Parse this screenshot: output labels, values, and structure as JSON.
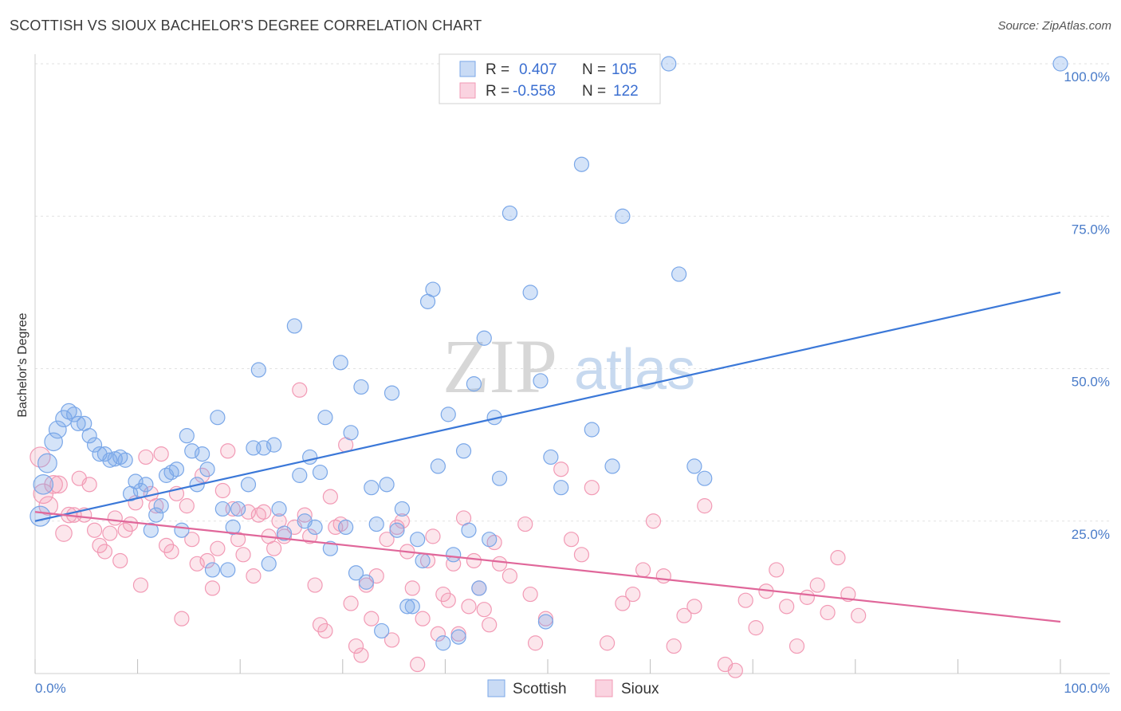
{
  "title": "SCOTTISH VS SIOUX BACHELOR'S DEGREE CORRELATION CHART",
  "source": "Source: ZipAtlas.com",
  "watermark": {
    "zip": "ZIP",
    "atlas": "atlas"
  },
  "legend_top": {
    "rows": [
      {
        "r_label": "R =",
        "r_value": "0.407",
        "n_label": "N =",
        "n_value": "105",
        "color": "#7aa7e8"
      },
      {
        "r_label": "R =",
        "r_value": "-0.558",
        "n_label": "N =",
        "n_value": "122",
        "color": "#f29ab5"
      }
    ]
  },
  "chart_data": {
    "type": "scatter",
    "title": "SCOTTISH VS SIOUX BACHELOR'S DEGREE CORRELATION CHART",
    "xlabel": "",
    "ylabel": "Bachelor's Degree",
    "xlim": [
      0,
      100
    ],
    "ylim": [
      0,
      100
    ],
    "x_tick_labels": [
      "0.0%",
      "100.0%"
    ],
    "y_tick_labels": [
      "25.0%",
      "50.0%",
      "75.0%",
      "100.0%"
    ],
    "y_ticks": [
      25,
      50,
      75,
      100
    ],
    "grid": true,
    "legend_position": "bottom-center",
    "series": [
      {
        "name": "Scottish",
        "color": "#7aa7e8",
        "line_color": "#3b78d8",
        "r": 0.407,
        "n": 105,
        "trend": {
          "x0": 0,
          "y0": 25.0,
          "x1": 100,
          "y1": 62.5
        },
        "points": [
          [
            0.5,
            25.8
          ],
          [
            0.8,
            31.0
          ],
          [
            1.2,
            34.5
          ],
          [
            1.8,
            38.0
          ],
          [
            2.2,
            40.0
          ],
          [
            2.8,
            41.8
          ],
          [
            3.3,
            43.0
          ],
          [
            3.8,
            42.5
          ],
          [
            4.2,
            41.0
          ],
          [
            4.8,
            41.0
          ],
          [
            5.3,
            39.0
          ],
          [
            5.8,
            37.5
          ],
          [
            6.3,
            36.0
          ],
          [
            6.8,
            36.0
          ],
          [
            7.3,
            35.0
          ],
          [
            7.8,
            35.2
          ],
          [
            8.3,
            35.5
          ],
          [
            8.8,
            35.0
          ],
          [
            9.3,
            29.5
          ],
          [
            9.8,
            31.5
          ],
          [
            10.3,
            30.0
          ],
          [
            10.8,
            31.0
          ],
          [
            11.3,
            23.5
          ],
          [
            11.8,
            26.0
          ],
          [
            12.3,
            27.5
          ],
          [
            12.8,
            32.5
          ],
          [
            13.3,
            33.0
          ],
          [
            13.8,
            33.5
          ],
          [
            14.3,
            23.5
          ],
          [
            14.8,
            39.0
          ],
          [
            15.3,
            36.5
          ],
          [
            15.8,
            31.0
          ],
          [
            16.3,
            36.0
          ],
          [
            16.8,
            33.5
          ],
          [
            17.3,
            17.0
          ],
          [
            17.8,
            42.0
          ],
          [
            18.3,
            27.0
          ],
          [
            18.8,
            17.0
          ],
          [
            19.3,
            24.0
          ],
          [
            19.8,
            27.0
          ],
          [
            20.8,
            31.0
          ],
          [
            21.3,
            37.0
          ],
          [
            21.8,
            49.8
          ],
          [
            22.3,
            37.0
          ],
          [
            22.8,
            18.0
          ],
          [
            23.3,
            37.5
          ],
          [
            23.8,
            27.0
          ],
          [
            24.3,
            23.0
          ],
          [
            25.3,
            57.0
          ],
          [
            25.8,
            32.5
          ],
          [
            26.3,
            25.0
          ],
          [
            26.8,
            35.5
          ],
          [
            27.3,
            24.0
          ],
          [
            27.8,
            33.0
          ],
          [
            28.3,
            42.0
          ],
          [
            28.8,
            20.5
          ],
          [
            29.8,
            51.0
          ],
          [
            30.3,
            24.0
          ],
          [
            30.8,
            39.5
          ],
          [
            31.3,
            16.5
          ],
          [
            31.8,
            47.0
          ],
          [
            32.3,
            15.0
          ],
          [
            32.8,
            30.5
          ],
          [
            33.3,
            24.5
          ],
          [
            33.8,
            7.0
          ],
          [
            34.3,
            31.0
          ],
          [
            34.8,
            46.0
          ],
          [
            35.3,
            23.5
          ],
          [
            35.8,
            27.0
          ],
          [
            36.3,
            11.0
          ],
          [
            36.8,
            11.0
          ],
          [
            37.3,
            22.0
          ],
          [
            37.8,
            18.5
          ],
          [
            38.3,
            61.0
          ],
          [
            38.8,
            63.0
          ],
          [
            39.3,
            34.0
          ],
          [
            39.8,
            5.0
          ],
          [
            40.3,
            42.5
          ],
          [
            40.8,
            19.5
          ],
          [
            41.3,
            6.0
          ],
          [
            41.8,
            36.5
          ],
          [
            42.3,
            23.5
          ],
          [
            42.8,
            47.5
          ],
          [
            43.3,
            14.0
          ],
          [
            43.8,
            55.0
          ],
          [
            44.3,
            22.0
          ],
          [
            44.8,
            42.0
          ],
          [
            45.3,
            32.0
          ],
          [
            46.3,
            75.5
          ],
          [
            48.3,
            62.5
          ],
          [
            49.3,
            48.0
          ],
          [
            49.8,
            8.5
          ],
          [
            50.3,
            35.5
          ],
          [
            51.3,
            30.5
          ],
          [
            53.3,
            83.5
          ],
          [
            53.8,
            100.0
          ],
          [
            54.3,
            40.0
          ],
          [
            55.3,
            100.0
          ],
          [
            56.3,
            34.0
          ],
          [
            57.3,
            75.0
          ],
          [
            61.8,
            100.0
          ],
          [
            62.8,
            65.5
          ],
          [
            64.3,
            34.0
          ],
          [
            65.3,
            32.0
          ],
          [
            100.0,
            100.0
          ]
        ]
      },
      {
        "name": "Sioux",
        "color": "#f29ab5",
        "line_color": "#e0679a",
        "r": -0.558,
        "n": 122,
        "trend": {
          "x0": 0,
          "y0": 26.5,
          "x1": 100,
          "y1": 8.5
        },
        "points": [
          [
            0.5,
            35.5
          ],
          [
            0.8,
            29.5
          ],
          [
            1.3,
            27.5
          ],
          [
            1.8,
            31.0
          ],
          [
            2.3,
            31.0
          ],
          [
            2.8,
            23.0
          ],
          [
            3.3,
            26.0
          ],
          [
            3.8,
            26.0
          ],
          [
            4.3,
            32.0
          ],
          [
            4.8,
            26.0
          ],
          [
            5.3,
            31.0
          ],
          [
            5.8,
            23.5
          ],
          [
            6.3,
            21.0
          ],
          [
            6.8,
            20.0
          ],
          [
            7.3,
            23.0
          ],
          [
            7.8,
            25.5
          ],
          [
            8.3,
            18.5
          ],
          [
            8.8,
            23.5
          ],
          [
            9.3,
            24.5
          ],
          [
            9.8,
            28.0
          ],
          [
            10.3,
            14.5
          ],
          [
            10.8,
            35.5
          ],
          [
            11.3,
            29.5
          ],
          [
            11.8,
            27.5
          ],
          [
            12.3,
            36.0
          ],
          [
            12.8,
            21.0
          ],
          [
            13.3,
            20.0
          ],
          [
            13.8,
            29.5
          ],
          [
            14.3,
            9.0
          ],
          [
            14.8,
            27.5
          ],
          [
            15.3,
            22.0
          ],
          [
            15.8,
            18.0
          ],
          [
            16.3,
            32.5
          ],
          [
            16.8,
            18.5
          ],
          [
            17.3,
            14.0
          ],
          [
            17.8,
            20.5
          ],
          [
            18.3,
            30.0
          ],
          [
            18.8,
            36.5
          ],
          [
            19.3,
            27.0
          ],
          [
            19.8,
            22.0
          ],
          [
            20.3,
            19.5
          ],
          [
            20.8,
            26.5
          ],
          [
            21.3,
            16.0
          ],
          [
            21.8,
            26.0
          ],
          [
            22.3,
            26.5
          ],
          [
            22.8,
            22.5
          ],
          [
            23.3,
            20.5
          ],
          [
            23.8,
            25.0
          ],
          [
            24.3,
            22.5
          ],
          [
            25.3,
            24.0
          ],
          [
            25.8,
            46.5
          ],
          [
            26.3,
            26.0
          ],
          [
            26.8,
            22.5
          ],
          [
            27.3,
            14.5
          ],
          [
            27.8,
            8.0
          ],
          [
            28.3,
            7.0
          ],
          [
            28.8,
            29.0
          ],
          [
            29.3,
            24.0
          ],
          [
            29.8,
            24.5
          ],
          [
            30.3,
            37.5
          ],
          [
            30.8,
            11.5
          ],
          [
            31.3,
            4.5
          ],
          [
            31.8,
            3.0
          ],
          [
            32.3,
            14.5
          ],
          [
            32.8,
            9.0
          ],
          [
            33.3,
            16.0
          ],
          [
            34.3,
            22.0
          ],
          [
            34.8,
            5.5
          ],
          [
            35.3,
            24.0
          ],
          [
            35.8,
            25.0
          ],
          [
            36.3,
            20.0
          ],
          [
            36.8,
            14.0
          ],
          [
            37.3,
            1.5
          ],
          [
            37.8,
            9.0
          ],
          [
            38.3,
            18.5
          ],
          [
            38.8,
            22.5
          ],
          [
            39.3,
            6.5
          ],
          [
            39.8,
            13.0
          ],
          [
            40.3,
            12.0
          ],
          [
            40.8,
            18.0
          ],
          [
            41.3,
            6.5
          ],
          [
            41.8,
            25.5
          ],
          [
            42.3,
            11.0
          ],
          [
            42.8,
            18.5
          ],
          [
            43.3,
            14.0
          ],
          [
            43.8,
            10.5
          ],
          [
            44.3,
            8.0
          ],
          [
            44.8,
            21.5
          ],
          [
            45.3,
            18.0
          ],
          [
            46.3,
            16.0
          ],
          [
            47.8,
            24.5
          ],
          [
            48.3,
            13.0
          ],
          [
            48.8,
            5.0
          ],
          [
            49.8,
            9.0
          ],
          [
            51.3,
            33.5
          ],
          [
            52.3,
            22.0
          ],
          [
            53.3,
            19.5
          ],
          [
            54.3,
            30.5
          ],
          [
            55.8,
            5.0
          ],
          [
            57.3,
            11.5
          ],
          [
            58.3,
            13.0
          ],
          [
            59.3,
            17.0
          ],
          [
            60.3,
            25.0
          ],
          [
            61.3,
            16.0
          ],
          [
            62.3,
            4.5
          ],
          [
            63.3,
            9.5
          ],
          [
            64.3,
            11.0
          ],
          [
            65.3,
            27.5
          ],
          [
            67.3,
            1.5
          ],
          [
            68.3,
            0.5
          ],
          [
            69.3,
            12.0
          ],
          [
            70.3,
            7.5
          ],
          [
            71.3,
            13.5
          ],
          [
            72.3,
            17.0
          ],
          [
            73.3,
            11.0
          ],
          [
            74.3,
            4.5
          ],
          [
            75.3,
            12.5
          ],
          [
            76.3,
            14.5
          ],
          [
            77.3,
            10.0
          ],
          [
            78.3,
            19.0
          ],
          [
            79.3,
            13.0
          ],
          [
            80.3,
            9.5
          ]
        ]
      }
    ]
  },
  "bottom_legend": [
    {
      "label": "Scottish",
      "color": "#7aa7e8"
    },
    {
      "label": "Sioux",
      "color": "#f29ab5"
    }
  ]
}
